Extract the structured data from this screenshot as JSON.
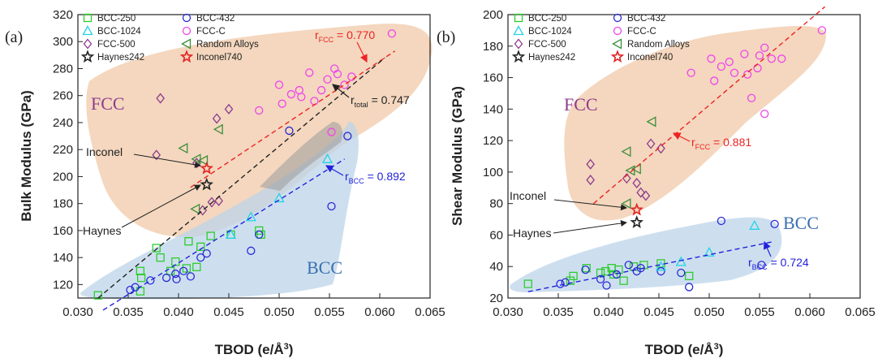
{
  "chart_data": [
    {
      "type": "scatter",
      "panel_tag": "(a)",
      "xlabel": "TBOD (e/Å",
      "xlabel_sup": "3",
      "xlabel_close": ")",
      "ylabel": "Bulk Modulus (GPa)",
      "xlim": [
        0.03,
        0.065
      ],
      "ylim": [
        110,
        320
      ],
      "xticks": [
        "0.030",
        "0.035",
        "0.040",
        "0.045",
        "0.050",
        "0.055",
        "0.060",
        "0.065"
      ],
      "yticks": [
        "120",
        "140",
        "160",
        "180",
        "200",
        "220",
        "240",
        "260",
        "280",
        "300",
        "320"
      ],
      "legend": [
        "BCC-250",
        "BCC-432",
        "BCC-1024",
        "FCC-C",
        "FCC-500",
        "Random Alloys",
        "Haynes242",
        "Inconel740"
      ],
      "series": [
        {
          "name": "BCC-250",
          "points": [
            [
              0.032,
              112
            ],
            [
              0.0362,
              115
            ],
            [
              0.0363,
              125
            ],
            [
              0.0362,
              130
            ],
            [
              0.0378,
              147
            ],
            [
              0.0382,
              140
            ],
            [
              0.0392,
              130
            ],
            [
              0.0397,
              137
            ],
            [
              0.0408,
              132
            ],
            [
              0.041,
              152
            ],
            [
              0.0418,
              133
            ],
            [
              0.0422,
              148
            ],
            [
              0.0432,
              156
            ],
            [
              0.0452,
              157
            ],
            [
              0.048,
              160
            ],
            [
              0.0482,
              157
            ]
          ]
        },
        {
          "name": "BCC-432",
          "points": [
            [
              0.0352,
              116
            ],
            [
              0.0357,
              118
            ],
            [
              0.0372,
              123
            ],
            [
              0.0388,
              125
            ],
            [
              0.0397,
              128
            ],
            [
              0.0398,
              124
            ],
            [
              0.0405,
              130
            ],
            [
              0.0412,
              126
            ],
            [
              0.0422,
              140
            ],
            [
              0.0428,
              143
            ],
            [
              0.0472,
              145
            ],
            [
              0.048,
              157
            ],
            [
              0.051,
              234
            ],
            [
              0.0552,
              178
            ],
            [
              0.0568,
              230
            ]
          ]
        },
        {
          "name": "BCC-1024",
          "points": [
            [
              0.0452,
              157
            ],
            [
              0.0472,
              170
            ],
            [
              0.05,
              184
            ],
            [
              0.0548,
              213
            ]
          ]
        },
        {
          "name": "FCC-C",
          "points": [
            [
              0.048,
              249
            ],
            [
              0.05,
              268
            ],
            [
              0.0503,
              254
            ],
            [
              0.0512,
              261
            ],
            [
              0.052,
              264
            ],
            [
              0.0522,
              259
            ],
            [
              0.053,
              277
            ],
            [
              0.0535,
              256
            ],
            [
              0.0542,
              264
            ],
            [
              0.0548,
              272
            ],
            [
              0.0555,
              280
            ],
            [
              0.0558,
              276
            ],
            [
              0.0565,
              268
            ],
            [
              0.0572,
              274
            ],
            [
              0.0552,
              233
            ],
            [
              0.0612,
              306
            ]
          ]
        },
        {
          "name": "FCC-500",
          "points": [
            [
              0.0382,
              258
            ],
            [
              0.0378,
              216
            ],
            [
              0.0418,
              210
            ],
            [
              0.0438,
              243
            ],
            [
              0.045,
              250
            ],
            [
              0.044,
              182
            ],
            [
              0.0433,
              181
            ],
            [
              0.0424,
              175
            ]
          ]
        },
        {
          "name": "Random Alloys",
          "points": [
            [
              0.0405,
              221
            ],
            [
              0.0418,
              213
            ],
            [
              0.0425,
              212
            ],
            [
              0.044,
              235
            ],
            [
              0.0417,
              176
            ]
          ]
        },
        {
          "name": "Haynes242",
          "points": [
            [
              0.0428,
              194
            ]
          ]
        },
        {
          "name": "Inconel740",
          "points": [
            [
              0.0428,
              206
            ]
          ]
        }
      ],
      "fit_lines": [
        {
          "name": "FCC",
          "label": "r",
          "sub": "FCC",
          "value": " = 0.770",
          "x": [
            0.0412,
            0.0615
          ],
          "y": [
            192,
            293
          ]
        },
        {
          "name": "BCC",
          "label": "r",
          "sub": "BCC",
          "value": " = 0.892",
          "x": [
            0.0325,
            0.0565
          ],
          "y": [
            101,
            213
          ]
        },
        {
          "name": "total",
          "label": "r",
          "sub": "total",
          "value": " = 0.747",
          "x": [
            0.032,
            0.0605
          ],
          "y": [
            110,
            288
          ]
        }
      ],
      "region_labels": [
        "FCC",
        "BCC"
      ],
      "annotations": [
        "Inconel",
        "Haynes"
      ]
    },
    {
      "type": "scatter",
      "panel_tag": "(b)",
      "xlabel": "TBOD (e/Å",
      "xlabel_sup": "3",
      "xlabel_close": ")",
      "ylabel": "Shear Modulus (GPa)",
      "xlim": [
        0.03,
        0.065
      ],
      "ylim": [
        20,
        200
      ],
      "xticks": [
        "0.030",
        "0.035",
        "0.040",
        "0.045",
        "0.050",
        "0.055",
        "0.060",
        "0.065"
      ],
      "yticks": [
        "20",
        "40",
        "60",
        "80",
        "100",
        "120",
        "140",
        "160",
        "180",
        "200"
      ],
      "legend": [
        "BCC-250",
        "BCC-432",
        "BCC-1024",
        "FCC-C",
        "FCC-500",
        "Random Alloys",
        "Haynes242",
        "Inconel740"
      ],
      "series": [
        {
          "name": "BCC-250",
          "points": [
            [
              0.032,
              29
            ],
            [
              0.0362,
              31
            ],
            [
              0.0365,
              34
            ],
            [
              0.0378,
              39
            ],
            [
              0.0392,
              36
            ],
            [
              0.0397,
              37
            ],
            [
              0.0403,
              39
            ],
            [
              0.0405,
              35
            ],
            [
              0.041,
              38
            ],
            [
              0.0415,
              31
            ],
            [
              0.0425,
              40
            ],
            [
              0.0435,
              41
            ],
            [
              0.0452,
              42
            ],
            [
              0.048,
              34
            ]
          ]
        },
        {
          "name": "BCC-432",
          "points": [
            [
              0.0352,
              29
            ],
            [
              0.0357,
              30
            ],
            [
              0.0377,
              38
            ],
            [
              0.0392,
              32
            ],
            [
              0.0398,
              28
            ],
            [
              0.0408,
              35
            ],
            [
              0.042,
              41
            ],
            [
              0.0428,
              37
            ],
            [
              0.0432,
              39
            ],
            [
              0.0452,
              37
            ],
            [
              0.0472,
              36
            ],
            [
              0.048,
              27
            ],
            [
              0.0512,
              69
            ],
            [
              0.0552,
              41
            ],
            [
              0.0565,
              67
            ]
          ]
        },
        {
          "name": "BCC-1024",
          "points": [
            [
              0.0452,
              40
            ],
            [
              0.0472,
              43
            ],
            [
              0.05,
              49
            ],
            [
              0.0545,
              66
            ]
          ]
        },
        {
          "name": "FCC-C",
          "points": [
            [
              0.0482,
              163
            ],
            [
              0.0502,
              172
            ],
            [
              0.0505,
              158
            ],
            [
              0.0512,
              167
            ],
            [
              0.052,
              170
            ],
            [
              0.0525,
              163
            ],
            [
              0.0535,
              175
            ],
            [
              0.0538,
              162
            ],
            [
              0.0542,
              147
            ],
            [
              0.0548,
              166
            ],
            [
              0.0555,
              179
            ],
            [
              0.055,
              174
            ],
            [
              0.0562,
              172
            ],
            [
              0.0572,
              172
            ],
            [
              0.0555,
              137
            ],
            [
              0.0612,
              190
            ]
          ]
        },
        {
          "name": "FCC-500",
          "points": [
            [
              0.0382,
              105
            ],
            [
              0.0382,
              95
            ],
            [
              0.0418,
              96
            ],
            [
              0.0428,
              93
            ],
            [
              0.0432,
              87
            ],
            [
              0.0437,
              85
            ],
            [
              0.0442,
              118
            ],
            [
              0.0452,
              115
            ]
          ]
        },
        {
          "name": "Random Alloys",
          "points": [
            [
              0.0418,
              113
            ],
            [
              0.0422,
              101
            ],
            [
              0.0428,
              102
            ],
            [
              0.0443,
              132
            ],
            [
              0.0418,
              80
            ]
          ]
        },
        {
          "name": "Haynes242",
          "points": [
            [
              0.0428,
              68
            ]
          ]
        },
        {
          "name": "Inconel740",
          "points": [
            [
              0.0428,
              76
            ]
          ]
        }
      ],
      "fit_lines": [
        {
          "name": "FCC",
          "label": "r",
          "sub": "FCC",
          "value": " = 0.881",
          "x": [
            0.0385,
            0.0615
          ],
          "y": [
            80,
            205
          ]
        },
        {
          "name": "BCC",
          "label": "r",
          "sub": "BCC",
          "value": " = 0.724",
          "x": [
            0.032,
            0.0565
          ],
          "y": [
            24,
            56
          ]
        }
      ],
      "region_labels": [
        "FCC",
        "BCC"
      ],
      "annotations": [
        "Inconel",
        "Haynes"
      ]
    }
  ]
}
